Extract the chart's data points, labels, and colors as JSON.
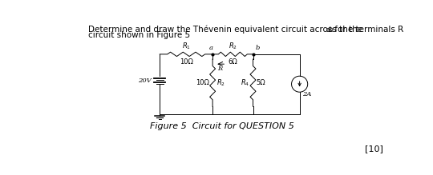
{
  "title_line1": "Determine and draw the Thévenin equivalent circuit across the terminals R",
  "title_sub": "ab",
  "title_line1_suffix": " for the",
  "title_line2": "circuit shown in Figure 5",
  "fig_caption": "Figure 5  Circuit for QUESTION 5",
  "mark": "[10]",
  "bg_color": "#ffffff",
  "line_color": "#000000",
  "text_color": "#000000",
  "R1_label": "$R_1$",
  "R1_val": "10Ω",
  "R2_label": "$R_2$",
  "R2_val": "6Ω",
  "R3_val": "10Ω",
  "R3_label": "$R_2$",
  "R4_label": "$R_4$",
  "R4_val": "5Ω",
  "Ix_label": "Ix",
  "Vsrc_val": "20V",
  "Isrc_val": "2A",
  "node_a": "a",
  "node_b": "b",
  "xl": 170,
  "xa": 255,
  "xb": 320,
  "xr": 395,
  "yt": 165,
  "yb": 68,
  "font_size_title": 7.5,
  "font_size_circuit": 6.0,
  "font_size_caption": 8.0,
  "font_size_mark": 8.0
}
